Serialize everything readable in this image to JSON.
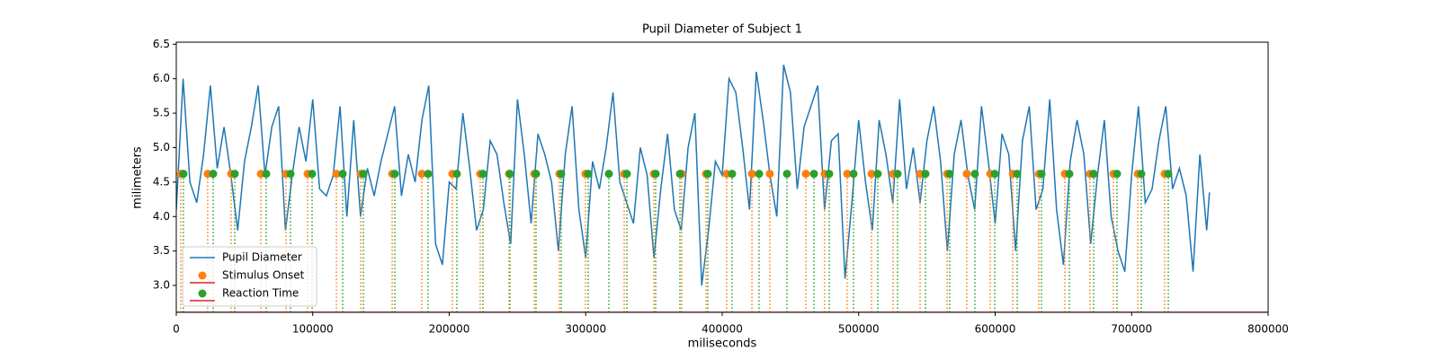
{
  "chart_data": {
    "type": "line",
    "title": "Pupil Diameter of Subject 1",
    "xlabel": "miliseconds",
    "ylabel": "milimeters",
    "xlim": [
      0,
      800000
    ],
    "ylim": [
      2.61,
      6.53
    ],
    "xticks": [
      0,
      100000,
      200000,
      300000,
      400000,
      500000,
      600000,
      700000,
      800000
    ],
    "yticks": [
      {
        "value": 3,
        "label": "3.0"
      },
      3.5,
      {
        "value": 4,
        "label": "4.0"
      },
      4.5,
      {
        "value": 5,
        "label": "5.0"
      },
      5.5,
      {
        "value": 6,
        "label": "6.0"
      },
      6.5
    ],
    "legend": "lower left",
    "baseline_color": "#d62728",
    "series": [
      {
        "name": "Pupil Diameter",
        "type": "line",
        "color": "#1f77b4",
        "x": [
          0,
          5000,
          10000,
          15000,
          20000,
          25000,
          30000,
          35000,
          40000,
          45000,
          50000,
          55000,
          60000,
          65000,
          70000,
          75000,
          80000,
          85000,
          90000,
          95000,
          100000,
          105000,
          110000,
          115000,
          120000,
          125000,
          130000,
          135000,
          140000,
          145000,
          150000,
          155000,
          160000,
          165000,
          170000,
          175000,
          180000,
          185000,
          190000,
          195000,
          200000,
          205000,
          210000,
          215000,
          220000,
          225000,
          230000,
          235000,
          240000,
          245000,
          250000,
          255000,
          260000,
          265000,
          270000,
          275000,
          280000,
          285000,
          290000,
          295000,
          300000,
          305000,
          310000,
          315000,
          320000,
          325000,
          330000,
          335000,
          340000,
          345000,
          350000,
          355000,
          360000,
          365000,
          370000,
          375000,
          380000,
          385000,
          390000,
          395000,
          400000,
          405000,
          410000,
          415000,
          420000,
          425000,
          430000,
          435000,
          440000,
          445000,
          450000,
          455000,
          460000,
          465000,
          470000,
          475000,
          480000,
          485000,
          490000,
          495000,
          500000,
          505000,
          510000,
          515000,
          520000,
          525000,
          530000,
          535000,
          540000,
          545000,
          550000,
          555000,
          560000,
          565000,
          570000,
          575000,
          580000,
          585000,
          590000,
          595000,
          600000,
          605000,
          610000,
          615000,
          620000,
          625000,
          630000,
          635000,
          640000,
          645000,
          650000,
          655000,
          660000,
          665000,
          670000,
          675000,
          680000,
          685000,
          690000,
          695000,
          700000,
          705000,
          710000,
          715000,
          720000,
          725000,
          730000,
          735000,
          740000,
          745000,
          750000,
          755000,
          757000
        ],
        "values": [
          4.1,
          6.0,
          4.5,
          4.2,
          4.9,
          5.9,
          4.7,
          5.3,
          4.6,
          3.8,
          4.8,
          5.3,
          5.9,
          4.6,
          5.3,
          5.6,
          3.8,
          4.6,
          5.3,
          4.8,
          5.7,
          4.4,
          4.3,
          4.6,
          5.6,
          4.0,
          5.4,
          4.0,
          4.7,
          4.3,
          4.8,
          5.2,
          5.6,
          4.3,
          4.9,
          4.5,
          5.4,
          5.9,
          3.6,
          3.3,
          4.5,
          4.4,
          5.5,
          4.7,
          3.8,
          4.1,
          5.1,
          4.9,
          4.2,
          3.6,
          5.7,
          4.9,
          3.9,
          5.2,
          4.9,
          4.5,
          3.5,
          4.9,
          5.6,
          4.1,
          3.4,
          4.8,
          4.4,
          5.0,
          5.8,
          4.5,
          4.2,
          3.9,
          5.0,
          4.6,
          3.4,
          4.4,
          5.2,
          4.1,
          3.8,
          5.0,
          5.5,
          3.0,
          3.8,
          4.8,
          4.6,
          6.0,
          5.8,
          5.0,
          4.1,
          6.1,
          5.4,
          4.6,
          4.0,
          6.2,
          5.8,
          4.4,
          5.3,
          5.6,
          5.9,
          4.1,
          5.1,
          5.2,
          3.1,
          4.2,
          5.4,
          4.5,
          3.8,
          5.4,
          4.9,
          4.2,
          5.7,
          4.4,
          5.0,
          4.2,
          5.1,
          5.6,
          4.8,
          3.5,
          4.9,
          5.4,
          4.6,
          4.1,
          5.6,
          4.8,
          3.9,
          5.2,
          4.9,
          3.5,
          5.1,
          5.6,
          4.1,
          4.4,
          5.7,
          4.1,
          3.3,
          4.8,
          5.4,
          4.9,
          3.6,
          4.6,
          5.4,
          4.0,
          3.5,
          3.2,
          4.6,
          5.6,
          4.2,
          4.4,
          5.1,
          5.6,
          4.4,
          4.7,
          4.3,
          3.2,
          4.9,
          3.8,
          4.35
        ]
      },
      {
        "name": "Stimulus Onset",
        "type": "stem",
        "color": "#ff7f0e",
        "x": [
          3300,
          23000,
          40200,
          62000,
          80400,
          96200,
          117300,
          135100,
          158200,
          179900,
          202300,
          222700,
          243800,
          262300,
          280700,
          299800,
          328200,
          349900,
          370400,
          388100,
          403300,
          421800,
          434900,
          461300,
          475100,
          491600,
          509400,
          525200,
          545000,
          564800,
          579200,
          596400,
          612900,
          632000,
          651100,
          669500,
          686700,
          704500,
          724200
        ],
        "values": [
          4.62,
          4.62,
          4.62,
          4.62,
          4.62,
          4.62,
          4.62,
          4.62,
          4.62,
          4.62,
          4.62,
          4.62,
          4.62,
          4.62,
          4.62,
          4.62,
          4.62,
          4.62,
          4.62,
          4.62,
          4.62,
          4.62,
          4.62,
          4.62,
          4.62,
          4.62,
          4.62,
          4.62,
          4.62,
          4.62,
          4.62,
          4.62,
          4.62,
          4.62,
          4.62,
          4.62,
          4.62,
          4.62,
          4.62
        ]
      },
      {
        "name": "Reaction Time",
        "type": "stem",
        "color": "#2ca02c",
        "x": [
          5270,
          27020,
          42830,
          65900,
          83690,
          99510,
          121910,
          137070,
          160130,
          184510,
          205600,
          224710,
          244480,
          263590,
          282040,
          301810,
          316970,
          330150,
          351240,
          369030,
          389460,
          407250,
          427020,
          447450,
          467220,
          478420,
          496210,
          514000,
          528500,
          548930,
          566720,
          585170,
          599670,
          616140,
          633940,
          654370,
          672160,
          689290,
          707080,
          726850
        ],
        "values": [
          4.62,
          4.62,
          4.62,
          4.62,
          4.62,
          4.62,
          4.62,
          4.62,
          4.62,
          4.62,
          4.62,
          4.62,
          4.62,
          4.62,
          4.62,
          4.62,
          4.62,
          4.62,
          4.62,
          4.62,
          4.62,
          4.62,
          4.62,
          4.62,
          4.62,
          4.62,
          4.62,
          4.62,
          4.62,
          4.62,
          4.62,
          4.62,
          4.62,
          4.62,
          4.62,
          4.62,
          4.62,
          4.62,
          4.62,
          4.62
        ]
      }
    ]
  }
}
